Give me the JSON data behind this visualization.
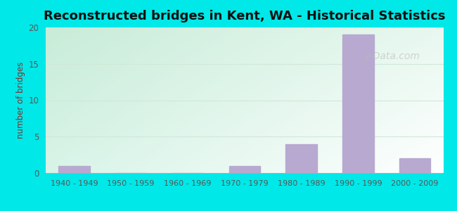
{
  "title": "Reconstructed bridges in Kent, WA - Historical Statistics",
  "categories": [
    "1940 - 1949",
    "1950 - 1959",
    "1960 - 1969",
    "1970 - 1979",
    "1980 - 1989",
    "1990 - 1999",
    "2000 - 2009"
  ],
  "values": [
    1,
    0,
    0,
    1,
    4,
    19,
    2
  ],
  "bar_color": "#b8a9d0",
  "ylim": [
    0,
    20
  ],
  "yticks": [
    0,
    5,
    10,
    15,
    20
  ],
  "ylabel": "number of bridges",
  "background_outer": "#00e8e8",
  "bg_color_topleft": "#c8ecd8",
  "bg_color_topright": "#e8f8f0",
  "bg_color_bottomleft": "#d8f4e8",
  "bg_color_bottomright": "#ffffff",
  "grid_color": "#d0e8d8",
  "title_fontsize": 13,
  "title_color": "#111111",
  "axis_label_color": "#7a3030",
  "tick_label_color": "#555555",
  "watermark": "y-Data.com",
  "watermark_color": "#bbbbbb"
}
